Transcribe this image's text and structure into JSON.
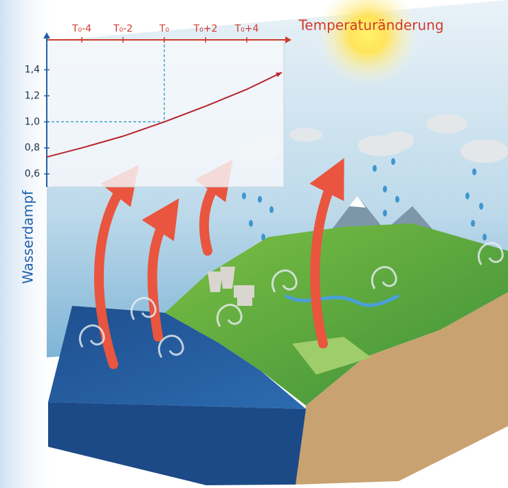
{
  "chart_data": {
    "type": "line",
    "x_label": "Temperaturänderung",
    "y_label": "Wasserdampf",
    "x": [
      -5.7,
      -4,
      -2,
      0,
      2,
      4,
      5.7
    ],
    "series": [
      {
        "color": "#b8232a",
        "values": [
          0.73,
          0.8,
          0.89,
          1.0,
          1.12,
          1.25,
          1.38
        ]
      }
    ],
    "xlim": [
      -5.7,
      5.7
    ],
    "ylim": [
      0.5,
      1.63
    ],
    "xticks": [
      {
        "value": -4,
        "label": "T₀-4"
      },
      {
        "value": -2,
        "label": "T₀-2"
      },
      {
        "value": 0,
        "label": "T₀"
      },
      {
        "value": 2,
        "label": "T₀+2"
      },
      {
        "value": 4,
        "label": "T₀+4"
      }
    ],
    "yticks": [
      {
        "value": 0.6,
        "label": "0,6"
      },
      {
        "value": 0.8,
        "label": "0,8"
      },
      {
        "value": 1.0,
        "label": "1,0"
      },
      {
        "value": 1.2,
        "label": "1,2"
      },
      {
        "value": 1.4,
        "label": "1,4"
      }
    ],
    "guide": {
      "x": 0,
      "y": 1.0
    },
    "x_axis_color": "#d03a2c",
    "y_axis_color": "#1f5fa8"
  }
}
